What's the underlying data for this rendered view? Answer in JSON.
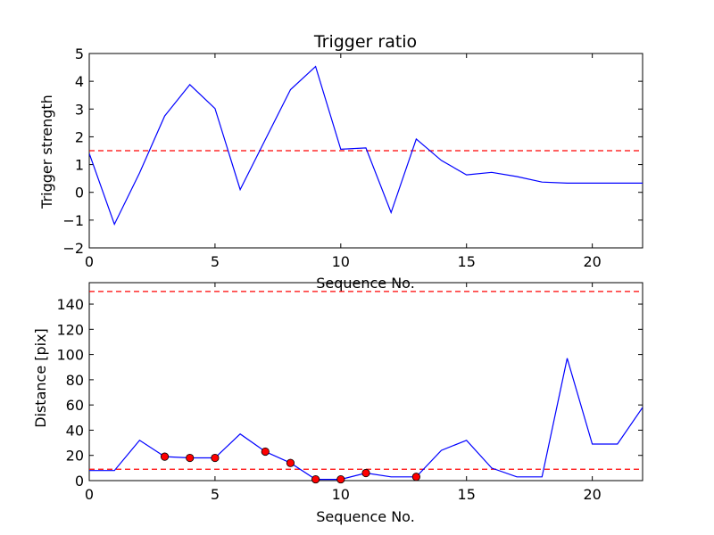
{
  "chart_data": [
    {
      "type": "line",
      "title": "Trigger ratio",
      "xlabel": "Sequence No.",
      "ylabel": "Trigger strength",
      "xlim": [
        0,
        22
      ],
      "ylim": [
        -2,
        5
      ],
      "xticks": [
        0,
        5,
        10,
        15,
        20
      ],
      "yticks": [
        -2,
        -1,
        0,
        1,
        2,
        3,
        4,
        5
      ],
      "grid": false,
      "series": [
        {
          "color": "#0000ff",
          "x": [
            0,
            1,
            2,
            3,
            4,
            5,
            6,
            7,
            8,
            9,
            10,
            11,
            12,
            13,
            14,
            15,
            16,
            17,
            18,
            19,
            20,
            21,
            22
          ],
          "values": [
            1.4,
            -1.15,
            0.7,
            2.75,
            3.88,
            3.02,
            0.1,
            1.9,
            3.7,
            4.53,
            1.55,
            1.6,
            -0.73,
            1.92,
            1.15,
            0.63,
            0.72,
            0.57,
            0.37,
            0.33,
            0.33,
            0.33,
            0.33
          ]
        }
      ],
      "thresholds": [
        {
          "y": 1.5,
          "color": "#ff0000",
          "style": "dashed"
        }
      ]
    },
    {
      "type": "line",
      "title": "",
      "xlabel": "Sequence No.",
      "ylabel": "Distance [pix]",
      "xlim": [
        0,
        22
      ],
      "ylim": [
        0,
        157
      ],
      "xticks": [
        0,
        5,
        10,
        15,
        20
      ],
      "yticks": [
        0,
        20,
        40,
        60,
        80,
        100,
        120,
        140
      ],
      "grid": false,
      "series": [
        {
          "color": "#0000ff",
          "x": [
            0,
            1,
            2,
            3,
            4,
            5,
            6,
            7,
            8,
            9,
            10,
            11,
            12,
            13,
            14,
            15,
            16,
            17,
            18,
            19,
            20,
            21,
            22
          ],
          "values": [
            8,
            8,
            32,
            19,
            18,
            18,
            37,
            23,
            14,
            1,
            1,
            6,
            3,
            3,
            24,
            32,
            10,
            3,
            3,
            97,
            29,
            29,
            58
          ]
        }
      ],
      "markers": {
        "color": "#ff0000",
        "x": [
          3,
          4,
          5,
          7,
          8,
          9,
          10,
          11,
          13
        ],
        "values": [
          19,
          18,
          18,
          23,
          14,
          1,
          1,
          6,
          3
        ]
      },
      "thresholds": [
        {
          "y": 150,
          "color": "#ff0000",
          "style": "dashed"
        },
        {
          "y": 9,
          "color": "#ff0000",
          "style": "dashed"
        }
      ]
    }
  ]
}
